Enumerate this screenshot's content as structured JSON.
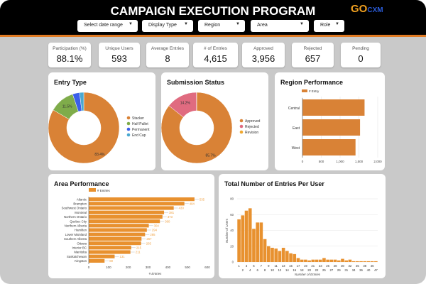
{
  "header": {
    "title": "CAMPAIGN EXECUTION PROGRAM",
    "logo": "GO CXM",
    "logo_main": "GO",
    "logo_sub": "CXM"
  },
  "filters": [
    {
      "label": "Select date range"
    },
    {
      "label": "Display Type"
    },
    {
      "label": "Region"
    },
    {
      "label": "Area"
    },
    {
      "label": "Role"
    }
  ],
  "kpis": [
    {
      "label": "Participation (%)",
      "value": "88.1%"
    },
    {
      "label": "Unique Users",
      "value": "593"
    },
    {
      "label": "Average Entries",
      "value": "8"
    },
    {
      "label": "# of Entries",
      "value": "4,615"
    },
    {
      "label": "Approved",
      "value": "3,956"
    },
    {
      "label": "Rejected",
      "value": "657"
    },
    {
      "label": "Pending",
      "value": "0"
    }
  ],
  "colors": {
    "orange": "#d98236",
    "green": "#7fac4a",
    "blue": "#3b5fe8",
    "lightblue": "#4aa8d0",
    "pink": "#e06b80",
    "yellow": "#f0a830",
    "bar": "#e8912f"
  },
  "chart_data": [
    {
      "type": "pie",
      "title": "Entry Type",
      "donut": true,
      "legend": "right",
      "slices": [
        {
          "name": "Stacker",
          "value": 83.4,
          "label": "83.4%",
          "color": "#d98236"
        },
        {
          "name": "Half Pallet",
          "value": 11.5,
          "label": "11.5%",
          "color": "#7fac4a"
        },
        {
          "name": "Permanent",
          "value": 3.2,
          "label": "",
          "color": "#3b5fe8"
        },
        {
          "name": "End Cap",
          "value": 1.9,
          "label": "",
          "color": "#4aa8d0"
        }
      ]
    },
    {
      "type": "pie",
      "title": "Submission Status",
      "donut": true,
      "legend": "right",
      "slices": [
        {
          "name": "Approved",
          "value": 85.7,
          "label": "85.7%",
          "color": "#d98236"
        },
        {
          "name": "Rejected",
          "value": 14.2,
          "label": "14.2%",
          "color": "#e06b80"
        },
        {
          "name": "Revision",
          "value": 0.1,
          "label": "",
          "color": "#f0a830"
        }
      ]
    },
    {
      "type": "bar",
      "orientation": "horizontal",
      "title": "Region Performance",
      "legend_label": "# Entry",
      "categories": [
        "Central",
        "East",
        "West"
      ],
      "values": [
        1650,
        1530,
        1410
      ],
      "xlim": [
        0,
        2000
      ],
      "xticks": [
        "0",
        "500",
        "1,000",
        "1,500",
        "2,000"
      ],
      "grid": true
    },
    {
      "type": "bar",
      "orientation": "horizontal",
      "title": "Area Performance",
      "legend_label": "# Entries",
      "xlabel": "# Entries",
      "categories": [
        "Atlantic",
        "Brampton",
        "Southwest Ontario",
        "Montreal",
        "Northern Ontario",
        "Quebec City",
        "Northern Alberta",
        "Hamilton",
        "Lower Mainland",
        "Southern Alberta",
        "Ottawa",
        "Interior BC",
        "Manitoba",
        "Saskatchewan",
        "Kingston"
      ],
      "values": [
        535,
        484,
        430,
        381,
        373,
        360,
        304,
        294,
        285,
        267,
        265,
        215,
        211,
        131,
        80
      ],
      "xlim": [
        0,
        600
      ],
      "xticks": [
        "0",
        "100",
        "200",
        "300",
        "400",
        "500",
        "600"
      ]
    },
    {
      "type": "bar",
      "title": "Total Number of Entries Per User",
      "xlabel": "Number of Entries",
      "ylabel": "Number of Users",
      "ylim": [
        0,
        80
      ],
      "yticks": [
        "0",
        "20",
        "40",
        "60",
        "80"
      ],
      "grid": true,
      "categories": [
        "1",
        "2",
        "3",
        "4",
        "5",
        "6",
        "7",
        "8",
        "9",
        "10",
        "11",
        "12",
        "13",
        "14",
        "15",
        "16",
        "17",
        "18",
        "19",
        "20",
        "21",
        "22",
        "23",
        "25",
        "26",
        "27",
        "28",
        "29",
        "30",
        "31",
        "32",
        "34",
        "35",
        "36",
        "38",
        "40",
        "46",
        "47"
      ],
      "values": [
        54,
        59,
        65,
        68,
        42,
        50,
        50,
        29,
        20,
        18,
        17,
        14,
        18,
        14,
        11,
        10,
        5,
        3,
        3,
        2,
        3,
        3,
        3,
        5,
        3,
        3,
        3,
        2,
        4,
        2,
        3,
        1,
        1,
        1,
        1,
        1,
        1,
        1
      ]
    }
  ]
}
